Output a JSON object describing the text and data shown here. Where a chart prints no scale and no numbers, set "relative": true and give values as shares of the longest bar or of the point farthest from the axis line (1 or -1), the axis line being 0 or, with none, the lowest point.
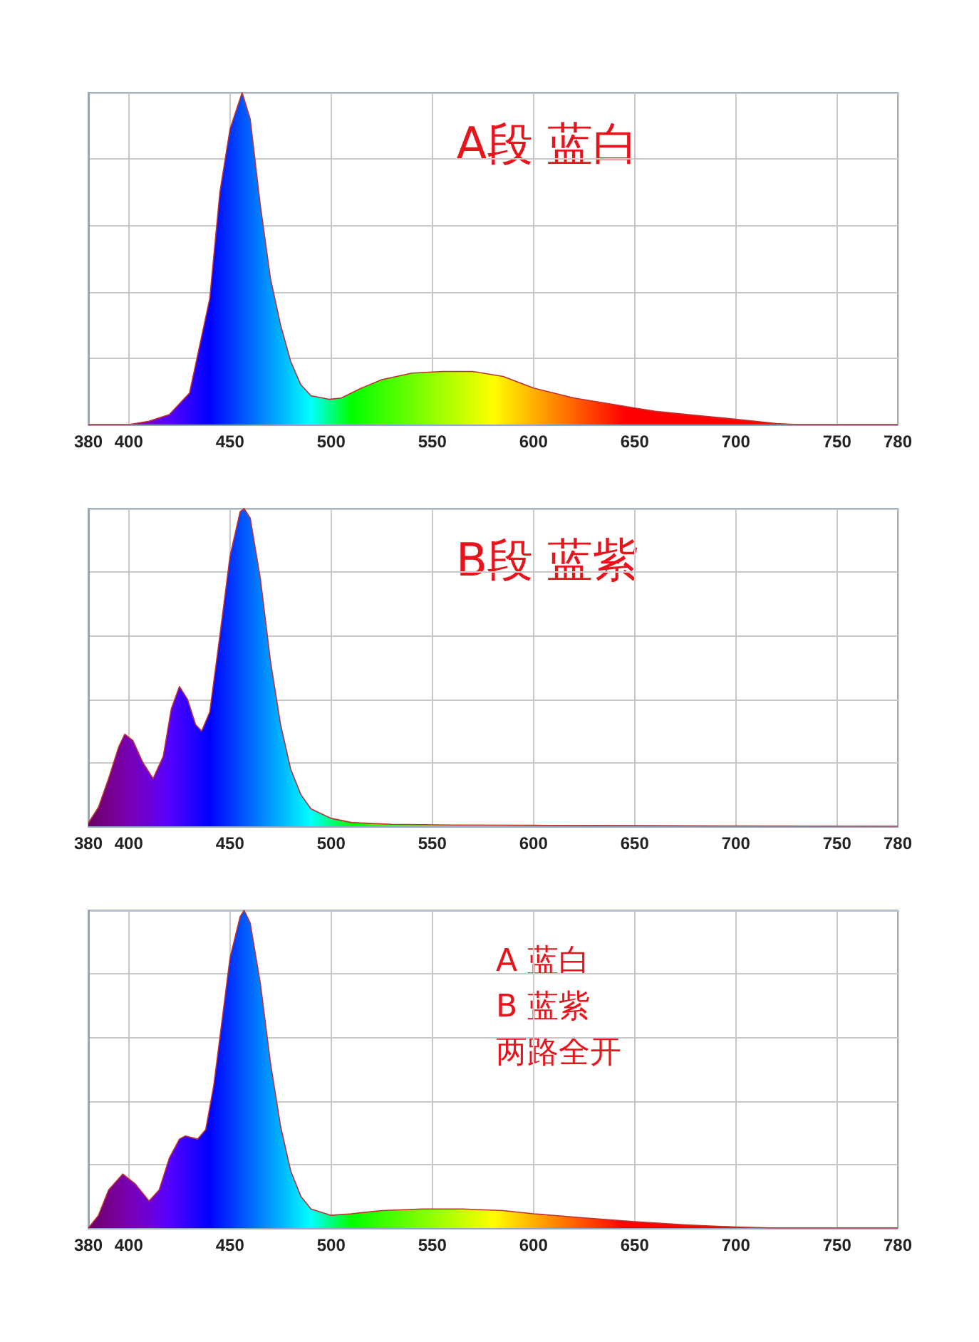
{
  "chart_data": [
    {
      "type": "area",
      "title": "A段 蓝白",
      "relative": true,
      "grid": true,
      "xlim": [
        380,
        780
      ],
      "xticks": [
        380,
        400,
        450,
        500,
        550,
        600,
        650,
        700,
        750,
        780
      ],
      "x": [
        380,
        400,
        410,
        420,
        430,
        440,
        445,
        450,
        456,
        460,
        465,
        470,
        475,
        480,
        485,
        490,
        499,
        505,
        515,
        525,
        540,
        555,
        570,
        585,
        600,
        620,
        640,
        650,
        660,
        680,
        700,
        720,
        730,
        780
      ],
      "values": [
        0,
        0,
        0.01,
        0.03,
        0.095,
        0.38,
        0.7,
        0.89,
        1,
        0.92,
        0.66,
        0.44,
        0.3,
        0.19,
        0.12,
        0.087,
        0.076,
        0.08,
        0.11,
        0.135,
        0.155,
        0.16,
        0.16,
        0.145,
        0.11,
        0.08,
        0.06,
        0.05,
        0.04,
        0.028,
        0.016,
        0.003,
        0,
        0
      ]
    },
    {
      "type": "area",
      "title": "B段 蓝紫",
      "relative": true,
      "grid": true,
      "xlim": [
        380,
        780
      ],
      "xticks": [
        380,
        400,
        450,
        500,
        550,
        600,
        650,
        700,
        750,
        780
      ],
      "x": [
        380,
        385,
        390,
        395,
        398,
        402,
        407,
        412,
        417,
        421,
        425,
        429,
        433,
        436,
        440,
        445,
        450,
        455,
        457,
        460,
        465,
        470,
        475,
        480,
        485,
        490,
        500,
        510,
        530,
        560,
        600,
        650,
        700,
        780
      ],
      "values": [
        0.01,
        0.06,
        0.15,
        0.25,
        0.29,
        0.27,
        0.2,
        0.15,
        0.22,
        0.37,
        0.44,
        0.4,
        0.32,
        0.3,
        0.36,
        0.6,
        0.85,
        0.99,
        1,
        0.97,
        0.78,
        0.52,
        0.32,
        0.18,
        0.1,
        0.055,
        0.025,
        0.012,
        0.006,
        0.004,
        0.003,
        0.002,
        0.001,
        0
      ]
    },
    {
      "type": "area",
      "annotations": [
        "A 蓝白",
        "B 蓝紫",
        "两路全开"
      ],
      "relative": true,
      "grid": true,
      "xlim": [
        380,
        780
      ],
      "xticks": [
        380,
        400,
        450,
        500,
        550,
        600,
        650,
        700,
        750,
        780
      ],
      "x": [
        380,
        385,
        390,
        397,
        403,
        410,
        415,
        420,
        425,
        428,
        434,
        438,
        442,
        446,
        450,
        455,
        457,
        460,
        465,
        470,
        475,
        480,
        485,
        490,
        500,
        510,
        525,
        545,
        565,
        585,
        600,
        625,
        650,
        675,
        700,
        720,
        780
      ],
      "values": [
        0,
        0.04,
        0.12,
        0.17,
        0.14,
        0.085,
        0.12,
        0.22,
        0.28,
        0.29,
        0.28,
        0.31,
        0.45,
        0.65,
        0.85,
        0.98,
        1,
        0.96,
        0.77,
        0.52,
        0.32,
        0.18,
        0.1,
        0.06,
        0.04,
        0.045,
        0.055,
        0.06,
        0.06,
        0.055,
        0.045,
        0.032,
        0.02,
        0.01,
        0.003,
        0,
        0
      ]
    }
  ]
}
